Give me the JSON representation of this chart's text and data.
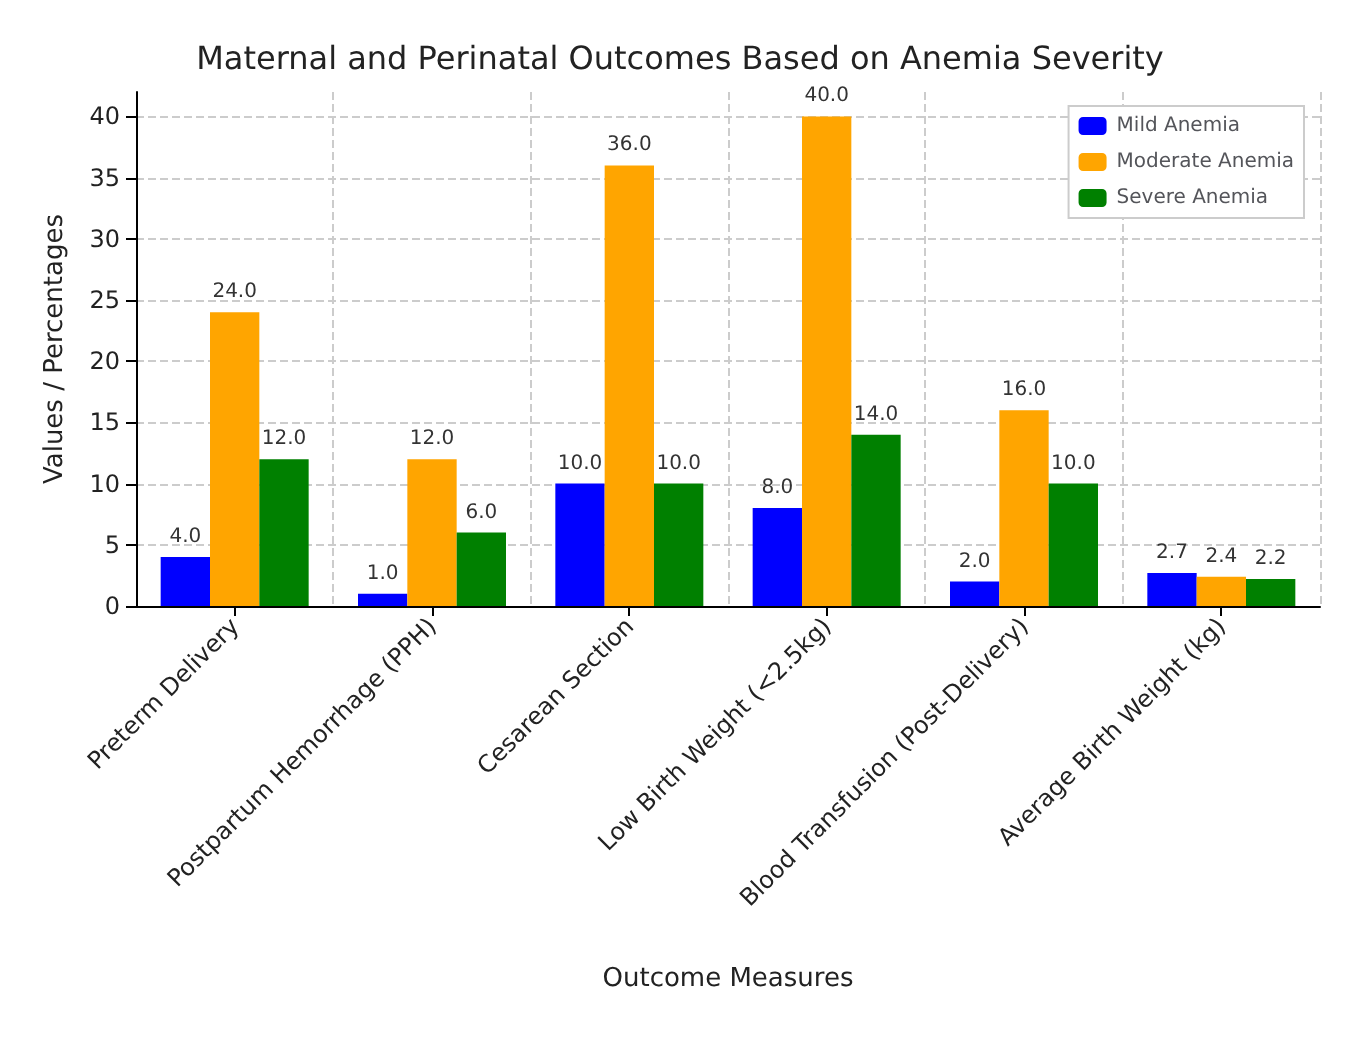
{
  "chart_data": {
    "type": "bar",
    "title": "Maternal and Perinatal Outcomes Based on Anemia Severity",
    "xlabel": "Outcome Measures",
    "ylabel": "Values / Percentages",
    "categories": [
      "Preterm Delivery",
      "Postpartum Hemorrhage (PPH)",
      "Cesarean Section",
      "Low Birth Weight (<2.5kg)",
      "Blood Transfusion (Post-Delivery)",
      "Average Birth Weight (kg)"
    ],
    "series": [
      {
        "name": "Mild Anemia",
        "color": "#0000ff",
        "values": [
          4,
          1,
          10,
          8,
          2,
          2.7
        ],
        "value_labels": [
          "4.0",
          "1.0",
          "10.0",
          "8.0",
          "2.0",
          "2.7"
        ]
      },
      {
        "name": "Moderate Anemia",
        "color": "#ffa500",
        "values": [
          24,
          12,
          36,
          40,
          16,
          2.4
        ],
        "value_labels": [
          "24.0",
          "12.0",
          "36.0",
          "40.0",
          "16.0",
          "2.4"
        ]
      },
      {
        "name": "Severe Anemia",
        "color": "#008000",
        "values": [
          12,
          6,
          10,
          14,
          10,
          2.2
        ],
        "value_labels": [
          "12.0",
          "6.0",
          "10.0",
          "14.0",
          "10.0",
          "2.2"
        ]
      }
    ],
    "ylim": [
      0,
      42
    ],
    "yticks": [
      0,
      5,
      10,
      15,
      20,
      25,
      30,
      35,
      40
    ],
    "grid": true,
    "legend": "top right"
  }
}
